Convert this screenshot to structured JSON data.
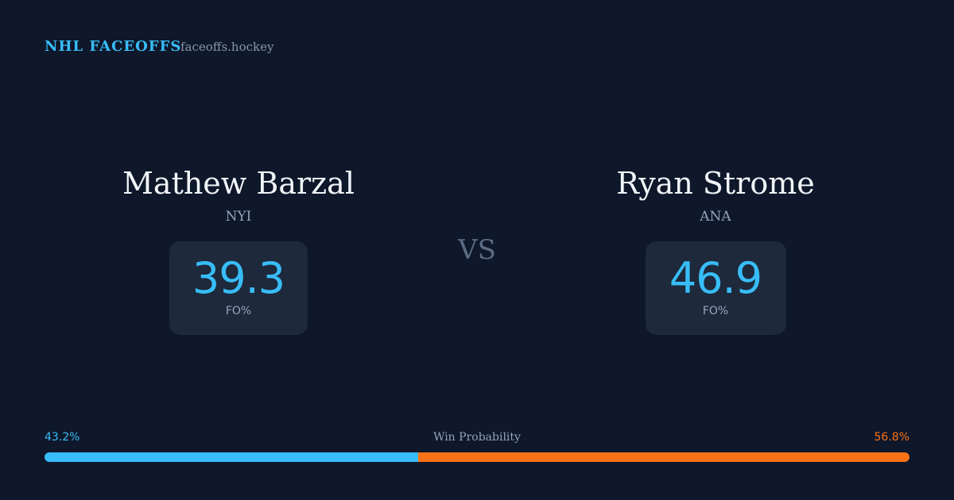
{
  "header": {
    "brand": "NHL FACEOFFS",
    "site": "faceoffs.hockey"
  },
  "players": [
    {
      "name": "Mathew Barzal",
      "team": "NYI",
      "fo_pct": 39.3,
      "fo_label": "FO%"
    },
    {
      "name": "Ryan Strome",
      "team": "ANA",
      "fo_pct": 46.9,
      "fo_label": "FO%"
    }
  ],
  "vs": "VS",
  "win_probability": {
    "label": "Win Probability",
    "xlim": [
      0,
      100
    ],
    "values": [
      43.2,
      56.8
    ],
    "value_labels": [
      "43.2%",
      "56.8%"
    ],
    "colors": [
      "#38bdf8",
      "#f97316"
    ]
  }
}
